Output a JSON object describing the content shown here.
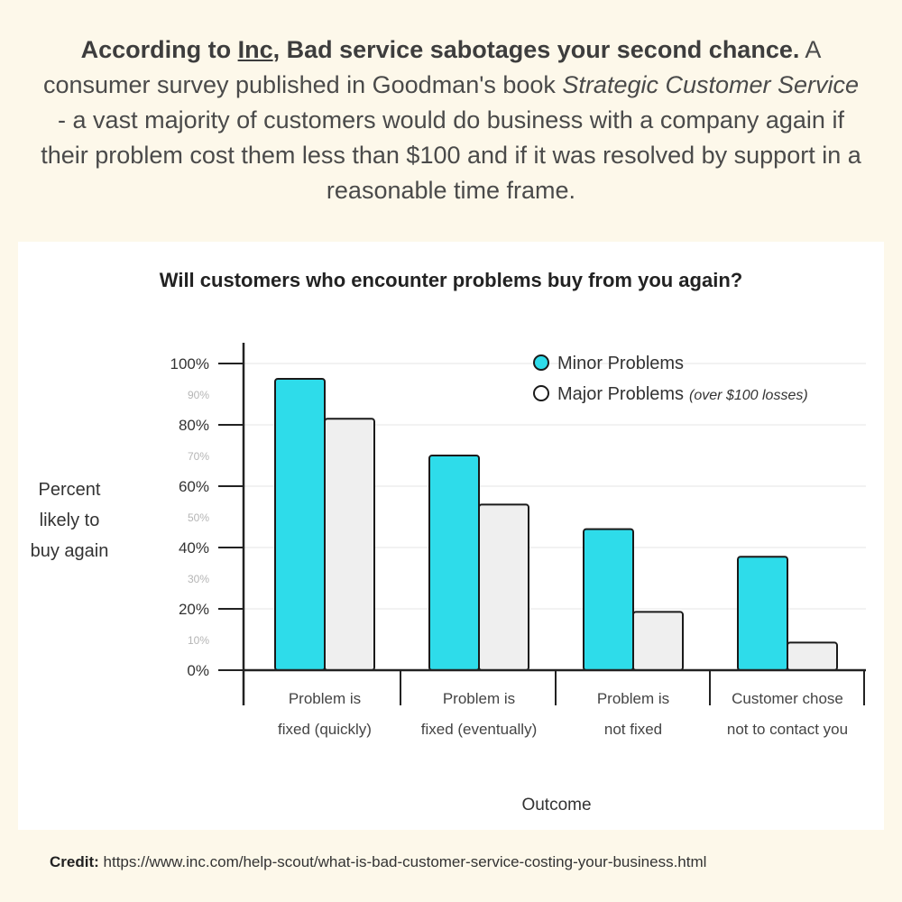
{
  "intro": {
    "bold_prefix": "According to ",
    "source_link": "Inc",
    "bold_headline": ", Bad service sabotages your second chance.",
    "text_part1": " A consumer survey published in Goodman's book ",
    "book_title": "Strategic Customer Service",
    "text_part2": " - a vast majority of customers would do business with a company again if their problem cost them less than $100 and if it was resolved by support in a reasonable time frame."
  },
  "chart_data": {
    "type": "bar",
    "title": "Will customers who encounter problems buy from you again?",
    "ylabel_lines": [
      "Percent",
      "likely to",
      "buy again"
    ],
    "xlabel": "Outcome",
    "ylim": [
      0,
      100
    ],
    "major_ticks": [
      "0%",
      "20%",
      "40%",
      "60%",
      "80%",
      "100%"
    ],
    "minor_ticks": [
      "10%",
      "30%",
      "50%",
      "70%",
      "90%"
    ],
    "categories": [
      [
        "Problem is",
        "fixed (quickly)"
      ],
      [
        "Problem is",
        "fixed (eventually)"
      ],
      [
        "Problem is",
        "not fixed"
      ],
      [
        "Customer chose",
        "not to contact you"
      ]
    ],
    "series": [
      {
        "name": "Minor Problems",
        "note": "",
        "color": "#2edcea",
        "values": [
          95,
          70,
          46,
          37
        ]
      },
      {
        "name": "Major Problems",
        "note": "(over $100 losses)",
        "color": "#efefef",
        "values": [
          82,
          54,
          19,
          9
        ]
      }
    ],
    "grid": true,
    "legend_position": "top-right"
  },
  "credit": {
    "label": "Credit:",
    "url": "https://www.inc.com/help-scout/what-is-bad-customer-service-costing-your-business.html"
  }
}
